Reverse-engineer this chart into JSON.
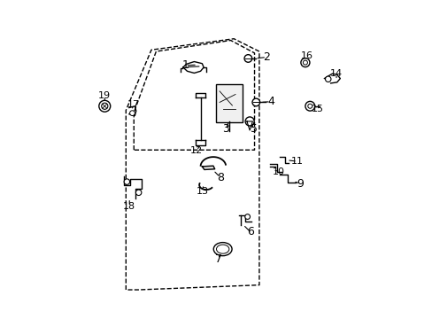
{
  "bg_color": "#ffffff",
  "fig_width": 4.89,
  "fig_height": 3.6,
  "dpi": 100,
  "door_outline": {
    "x": [
      0.3,
      0.3,
      0.38,
      0.62,
      0.7,
      0.7,
      0.36,
      0.3
    ],
    "y": [
      0.1,
      0.62,
      0.83,
      0.88,
      0.83,
      0.12,
      0.1,
      0.1
    ]
  },
  "window_outline": {
    "x": [
      0.33,
      0.33,
      0.4,
      0.62,
      0.68,
      0.68,
      0.33
    ],
    "y": [
      0.52,
      0.65,
      0.82,
      0.86,
      0.81,
      0.52,
      0.52
    ]
  }
}
